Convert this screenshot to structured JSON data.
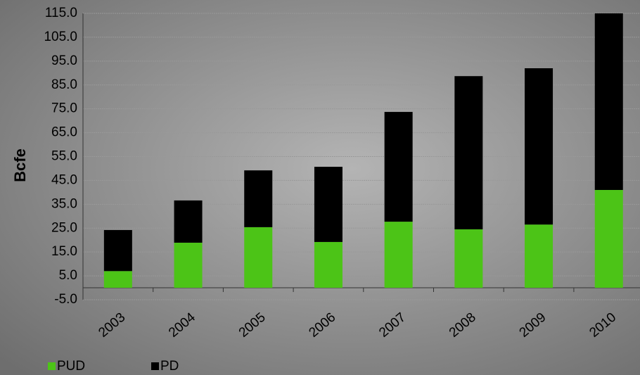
{
  "chart_data": {
    "type": "stacked_bar",
    "y_label": "Bcfe",
    "categories": [
      "2003",
      "2004",
      "2005",
      "2006",
      "2007",
      "2008",
      "2009",
      "2010"
    ],
    "series": [
      {
        "name": "PUD",
        "color": "#4cc417",
        "values": [
          7.0,
          18.9,
          25.4,
          19.2,
          27.7,
          24.5,
          26.5,
          41.0
        ]
      },
      {
        "name": "PD",
        "color": "#000000",
        "values": [
          17.2,
          17.7,
          23.8,
          31.5,
          46.0,
          64.2,
          65.5,
          74.0
        ]
      }
    ],
    "ylim": [
      -5,
      115
    ],
    "yticks": [
      {
        "value": -5,
        "label": "-5.0"
      },
      {
        "value": 5,
        "label": "5.0"
      },
      {
        "value": 15,
        "label": "15.0"
      },
      {
        "value": 25,
        "label": "25.0"
      },
      {
        "value": 35,
        "label": "35.0"
      },
      {
        "value": 45,
        "label": "45.0"
      },
      {
        "value": 55,
        "label": "55.0"
      },
      {
        "value": 65,
        "label": "65.0"
      },
      {
        "value": 75,
        "label": "75.0"
      },
      {
        "value": 85,
        "label": "85.0"
      },
      {
        "value": 95,
        "label": "95.0"
      },
      {
        "value": 105,
        "label": "105.0"
      },
      {
        "value": 115,
        "label": "115.0"
      }
    ],
    "grid": true
  }
}
